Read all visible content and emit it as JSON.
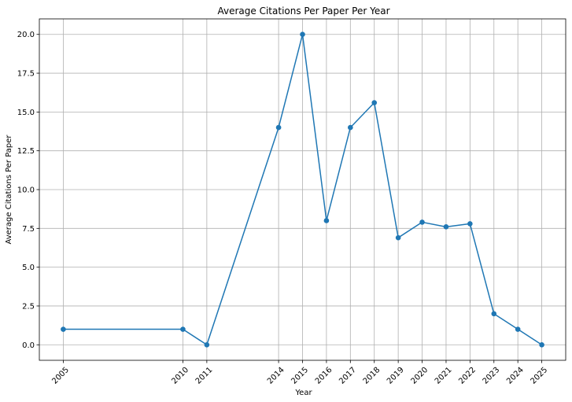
{
  "chart_data": {
    "type": "line",
    "title": "Average Citations Per Paper Per Year",
    "xlabel": "Year",
    "ylabel": "Average Citations Per Paper",
    "x": [
      2005,
      2010,
      2011,
      2014,
      2015,
      2016,
      2017,
      2018,
      2019,
      2020,
      2021,
      2022,
      2023,
      2024,
      2025
    ],
    "xticks": [
      "2005",
      "2010",
      "2011",
      "2014",
      "2015",
      "2016",
      "2017",
      "2018",
      "2019",
      "2020",
      "2021",
      "2022",
      "2023",
      "2024",
      "2025"
    ],
    "series": [
      {
        "values": [
          1.0,
          1.0,
          0.0,
          14.0,
          20.0,
          8.0,
          14.0,
          15.6,
          6.9,
          7.9,
          7.6,
          7.8,
          2.0,
          1.0,
          0.0
        ],
        "color": "#1f77b4"
      }
    ],
    "yticks": [
      "0.0",
      "2.5",
      "5.0",
      "7.5",
      "10.0",
      "12.5",
      "15.0",
      "17.5",
      "20.0"
    ],
    "ytick_values": [
      0,
      2.5,
      5,
      7.5,
      10,
      12.5,
      15,
      17.5,
      20
    ],
    "xlim": [
      2004,
      2026
    ],
    "ylim": [
      -1,
      21
    ],
    "grid": true,
    "x_tick_rotation": "45 degrees"
  }
}
